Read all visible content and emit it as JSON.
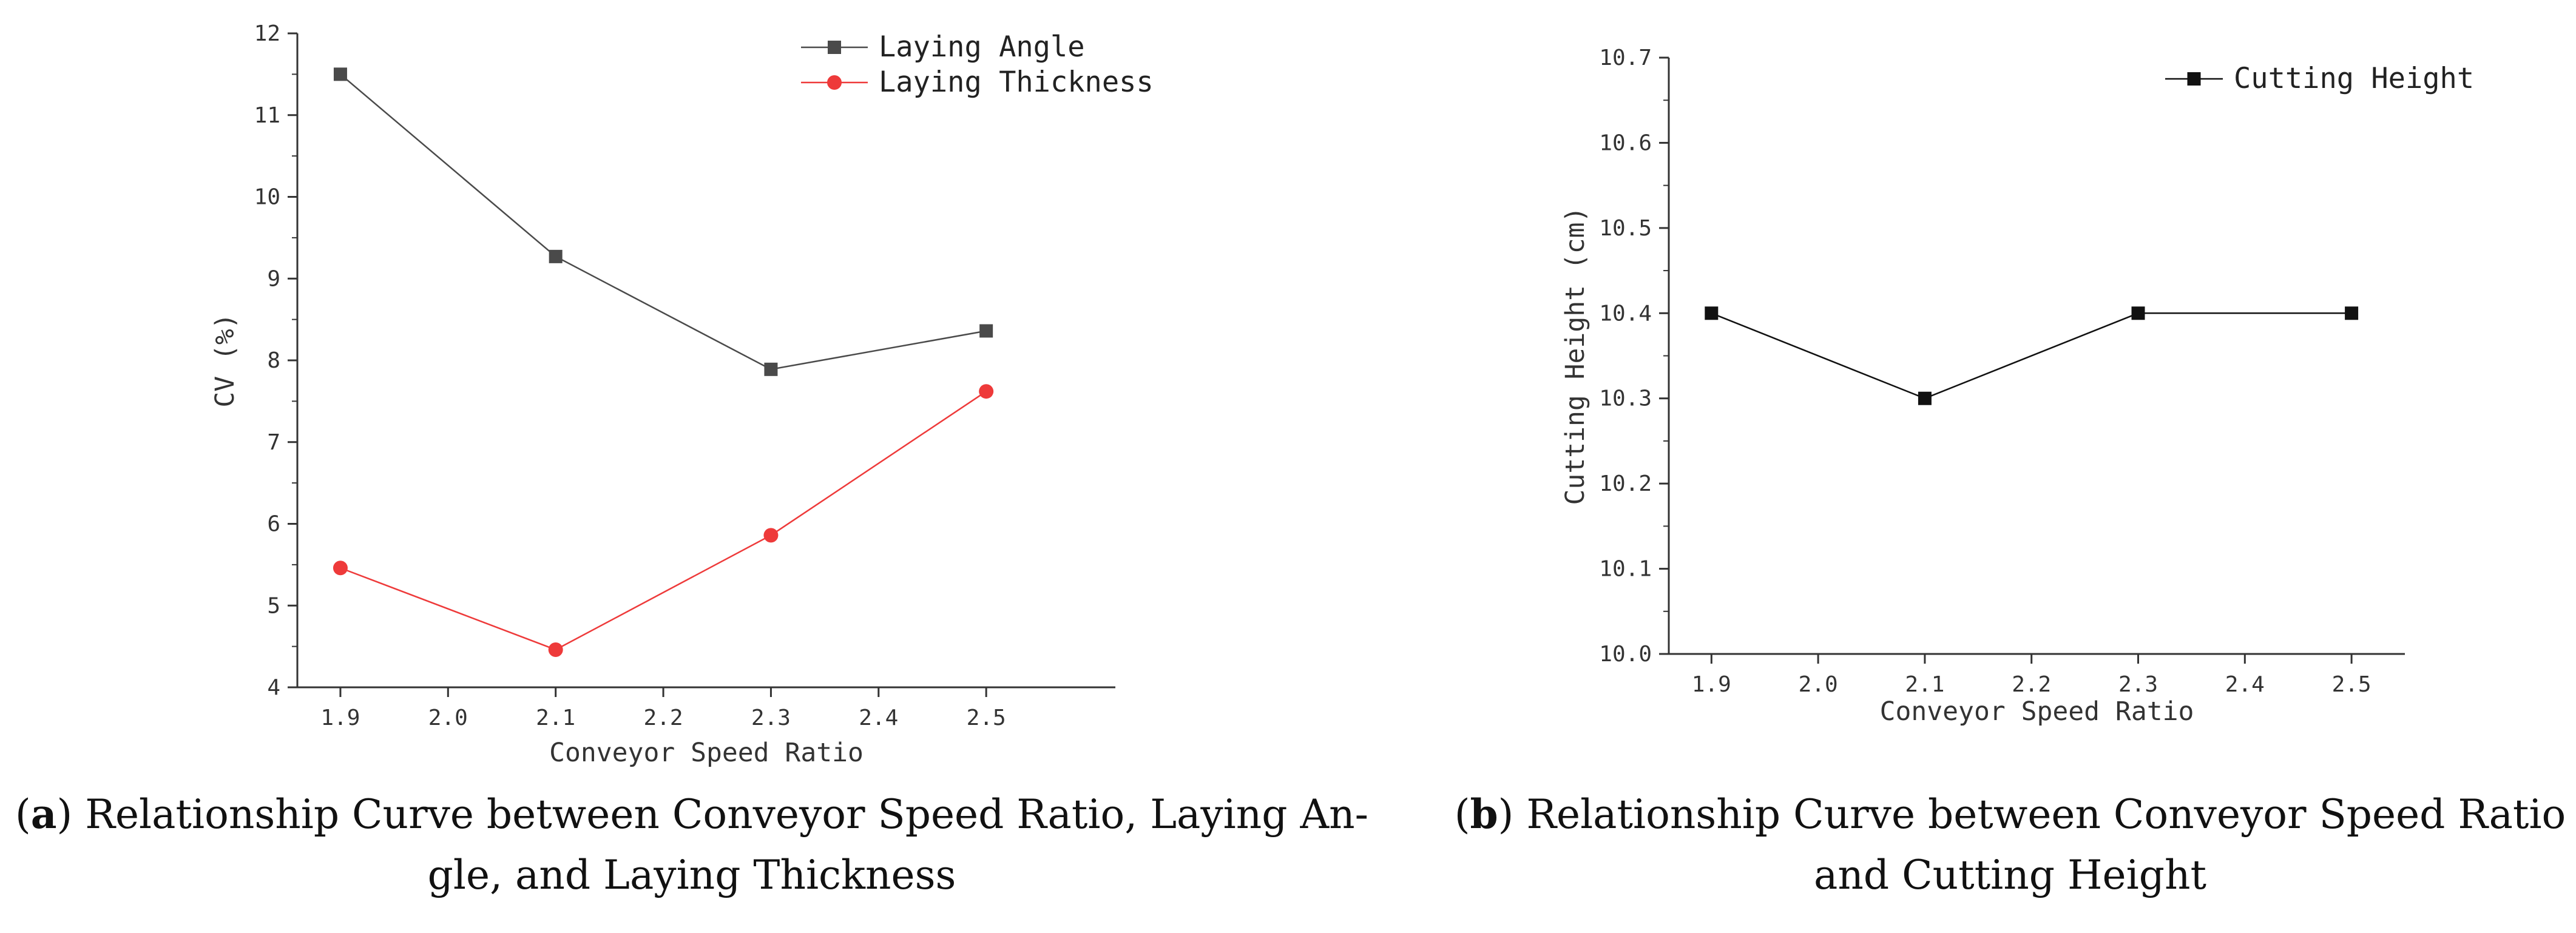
{
  "chart_data": [
    {
      "id": "a",
      "type": "line",
      "title": "",
      "xlabel": "Conveyor Speed Ratio",
      "ylabel": "CV (%)",
      "xlim": [
        1.86,
        2.62
      ],
      "ylim": [
        4,
        12
      ],
      "xticks": [
        1.9,
        2.0,
        2.1,
        2.2,
        2.3,
        2.4,
        2.5
      ],
      "xtick_labels": [
        "1.9",
        "2.0",
        "2.1",
        "2.2",
        "2.3",
        "2.4",
        "2.5"
      ],
      "yticks": [
        4,
        5,
        6,
        7,
        8,
        9,
        10,
        11,
        12
      ],
      "ytick_labels": [
        "4",
        "5",
        "6",
        "7",
        "8",
        "9",
        "10",
        "11",
        "12"
      ],
      "x": [
        1.9,
        2.1,
        2.3,
        2.5
      ],
      "series": [
        {
          "name": "Laying Angle",
          "values": [
            11.5,
            9.27,
            7.89,
            8.36
          ],
          "color": "#4a4a4a",
          "marker": "square"
        },
        {
          "name": "Laying Thickness",
          "values": [
            5.46,
            4.46,
            5.86,
            7.62
          ],
          "color": "#ee3a3a",
          "marker": "circle"
        }
      ],
      "legend_position": "top-right",
      "grid": false
    },
    {
      "id": "b",
      "type": "line",
      "title": "",
      "xlabel": "Conveyor Speed Ratio",
      "ylabel": "Cutting Height (cm)",
      "xlim": [
        1.86,
        2.55
      ],
      "ylim": [
        10.0,
        10.7
      ],
      "xticks": [
        1.9,
        2.0,
        2.1,
        2.2,
        2.3,
        2.4,
        2.5
      ],
      "xtick_labels": [
        "1.9",
        "2.0",
        "2.1",
        "2.2",
        "2.3",
        "2.4",
        "2.5"
      ],
      "yticks": [
        10.0,
        10.1,
        10.2,
        10.3,
        10.4,
        10.5,
        10.6,
        10.7
      ],
      "ytick_labels": [
        "10.0",
        "10.1",
        "10.2",
        "10.3",
        "10.4",
        "10.5",
        "10.6",
        "10.7"
      ],
      "x": [
        1.9,
        2.1,
        2.3,
        2.5
      ],
      "series": [
        {
          "name": "Cutting Height",
          "values": [
            10.4,
            10.3,
            10.4,
            10.4
          ],
          "color": "#111111",
          "marker": "square"
        }
      ],
      "legend_position": "top-right",
      "grid": false
    }
  ],
  "captions": {
    "a": {
      "letter": "a",
      "line1": " Relationship Curve between Conveyor Speed Ratio, Laying An-",
      "line2": "gle, and Laying Thickness"
    },
    "b": {
      "letter": "b",
      "line1": " Relationship Curve between Conveyor Speed Ratio",
      "line2": "and Cutting Height"
    }
  }
}
